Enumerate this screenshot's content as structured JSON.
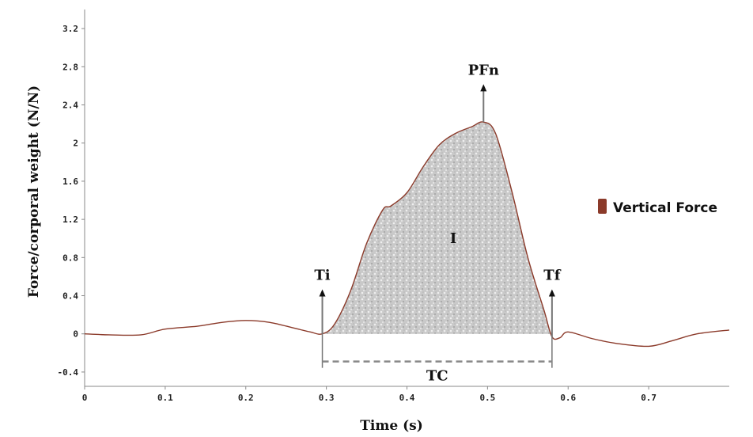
{
  "chart_data": {
    "type": "line",
    "xlabel": "Time (s)",
    "ylabel": "Force/corporal weight (N/N)",
    "xlim": [
      0,
      0.8
    ],
    "ylim": [
      -0.55,
      3.4
    ],
    "x_ticks": [
      0,
      0.1,
      0.2,
      0.3,
      0.4,
      0.5,
      0.6,
      0.7
    ],
    "x_tick_labels": [
      "0",
      "0.1",
      "0.2",
      "0.3",
      "0.4",
      "0.5",
      "0.6",
      "0.7"
    ],
    "y_ticks": [
      -0.4,
      0,
      0.4,
      0.8,
      1.2,
      1.6,
      2,
      2.4,
      2.8,
      3.2
    ],
    "y_tick_labels": [
      "-0.4",
      "0",
      "0.4",
      "0.8",
      "1.2",
      "1.6",
      "2",
      "2.4",
      "2.8",
      "3.2"
    ],
    "legend": {
      "position": "right",
      "entries": [
        "Vertical Force"
      ]
    },
    "series": [
      {
        "name": "Vertical Force",
        "color": "#8b3a2a",
        "x": [
          0,
          0.03,
          0.07,
          0.1,
          0.14,
          0.17,
          0.2,
          0.23,
          0.26,
          0.28,
          0.295,
          0.31,
          0.33,
          0.35,
          0.37,
          0.38,
          0.4,
          0.42,
          0.44,
          0.46,
          0.48,
          0.495,
          0.51,
          0.53,
          0.55,
          0.57,
          0.58,
          0.59,
          0.6,
          0.63,
          0.66,
          0.7,
          0.73,
          0.76,
          0.8
        ],
        "y": [
          0,
          -0.01,
          -0.01,
          0.05,
          0.08,
          0.12,
          0.14,
          0.12,
          0.06,
          0.02,
          0.0,
          0.1,
          0.45,
          0.95,
          1.3,
          1.34,
          1.48,
          1.75,
          1.98,
          2.1,
          2.17,
          2.22,
          2.1,
          1.5,
          0.8,
          0.25,
          -0.03,
          -0.04,
          0.02,
          -0.05,
          -0.1,
          -0.13,
          -0.07,
          0.0,
          0.04
        ]
      }
    ],
    "shaded_region": {
      "label": "I",
      "x_start": 0.295,
      "x_end": 0.58
    },
    "annotations": [
      {
        "label": "Ti",
        "x": 0.295,
        "y_from": 0,
        "y_to": 0.45
      },
      {
        "label": "Tf",
        "x": 0.58,
        "y_from": -0.03,
        "y_to": 0.45
      },
      {
        "label": "PFn",
        "x": 0.495,
        "y_from": 2.22,
        "y_to": 2.6
      }
    ],
    "interval": {
      "label": "TC",
      "x_start": 0.295,
      "x_end": 0.58,
      "y": -0.29
    }
  }
}
